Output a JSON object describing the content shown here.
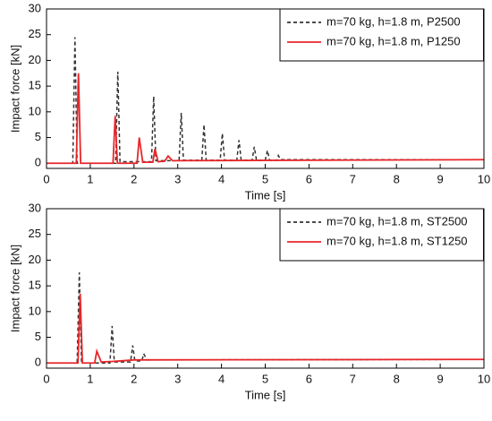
{
  "chart_data": [
    {
      "type": "line",
      "xlabel": "Time [s]",
      "ylabel": "Impact force [kN]",
      "xlim": [
        0,
        10
      ],
      "ylim": [
        -1,
        30
      ],
      "xticks": [
        0,
        1,
        2,
        3,
        4,
        5,
        6,
        7,
        8,
        9,
        10
      ],
      "yticks": [
        0,
        5,
        10,
        15,
        20,
        25,
        30
      ],
      "legend": "upper right",
      "series": [
        {
          "name": "m=70 kg, h=1.8 m, P2500",
          "color": "#333333",
          "dash": true,
          "x": [
            0,
            0.6,
            0.65,
            0.7,
            1.58,
            1.63,
            1.68,
            2.4,
            2.45,
            2.5,
            3.03,
            3.08,
            3.13,
            3.55,
            3.6,
            3.65,
            3.97,
            4.02,
            4.07,
            4.35,
            4.4,
            4.45,
            4.7,
            4.75,
            4.8,
            5.0,
            5.05,
            5.1,
            5.27,
            5.3,
            5.35,
            10
          ],
          "values": [
            0,
            0,
            24.5,
            0,
            0,
            17.8,
            0.3,
            0.3,
            13,
            0.5,
            0.5,
            9.8,
            0.6,
            0.6,
            7.5,
            0.6,
            0.6,
            5.8,
            0.6,
            0.6,
            4.5,
            0.6,
            0.6,
            3.2,
            0.6,
            0.6,
            2.5,
            0.6,
            0.6,
            1.5,
            0.7,
            0.7
          ]
        },
        {
          "name": "m=70 kg, h=1.8 m, P1250",
          "color": "#e8262a",
          "dash": false,
          "x": [
            0,
            0.68,
            0.73,
            0.78,
            1.52,
            1.57,
            1.62,
            2.07,
            2.12,
            2.2,
            2.43,
            2.48,
            2.55,
            2.7,
            2.78,
            2.88,
            10
          ],
          "values": [
            0,
            0,
            17.5,
            0,
            0,
            9.2,
            0,
            0,
            5,
            0.2,
            0.2,
            2.8,
            0.3,
            0.4,
            1.4,
            0.5,
            0.7
          ]
        }
      ]
    },
    {
      "type": "line",
      "xlabel": "Time [s]",
      "ylabel": "Impact force [kN]",
      "xlim": [
        0,
        10
      ],
      "ylim": [
        -1,
        30
      ],
      "xticks": [
        0,
        1,
        2,
        3,
        4,
        5,
        6,
        7,
        8,
        9,
        10
      ],
      "yticks": [
        0,
        5,
        10,
        15,
        20,
        25,
        30
      ],
      "legend": "upper right",
      "series": [
        {
          "name": "m=70 kg, h=1.8 m, ST2500",
          "color": "#333333",
          "dash": true,
          "x": [
            0,
            0.7,
            0.75,
            0.8,
            1.45,
            1.5,
            1.55,
            1.92,
            1.97,
            2.02,
            2.18,
            2.22,
            2.3,
            10
          ],
          "values": [
            0,
            0,
            17.6,
            0,
            0,
            7.2,
            0.2,
            0.2,
            3.4,
            0.4,
            0.4,
            1.8,
            0.6,
            0.7
          ]
        },
        {
          "name": "m=70 kg, h=1.8 m, ST1250",
          "color": "#e8262a",
          "dash": false,
          "x": [
            0,
            0.72,
            0.77,
            0.82,
            1.1,
            1.15,
            1.25,
            1.5,
            2.0,
            10
          ],
          "values": [
            0,
            0,
            13.5,
            0,
            0,
            2.3,
            0.2,
            0.3,
            0.6,
            0.7
          ]
        }
      ]
    }
  ]
}
